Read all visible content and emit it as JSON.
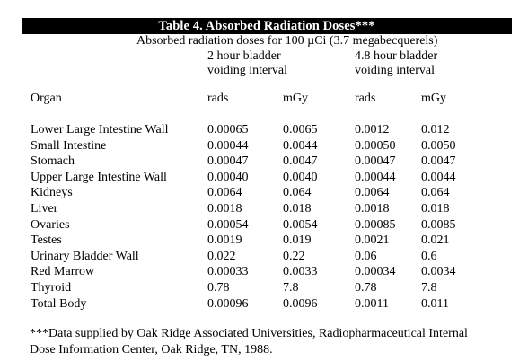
{
  "title": "Table 4. Absorbed Radiation Doses***",
  "subtitle": "Absorbed radiation doses for 100 µCi (3.7 megabecquerels)",
  "groups": [
    {
      "line1": "2 hour bladder",
      "line2": "voiding interval"
    },
    {
      "line1": "4.8 hour bladder",
      "line2": "voiding interval"
    }
  ],
  "columns": {
    "organ": "Organ",
    "rads1": "rads",
    "mgy1": "mGy",
    "rads2": "rads",
    "mgy2": "mGy"
  },
  "rows": [
    {
      "organ": "Lower Large Intestine Wall",
      "rads1": "0.00065",
      "mgy1": "0.0065",
      "rads2": "0.0012",
      "mgy2": "0.012"
    },
    {
      "organ": "Small Intestine",
      "rads1": "0.00044",
      "mgy1": "0.0044",
      "rads2": "0.00050",
      "mgy2": "0.0050"
    },
    {
      "organ": "Stomach",
      "rads1": "0.00047",
      "mgy1": "0.0047",
      "rads2": "0.00047",
      "mgy2": "0.0047"
    },
    {
      "organ": "Upper Large Intestine Wall",
      "rads1": "0.00040",
      "mgy1": "0.0040",
      "rads2": "0.00044",
      "mgy2": "0.0044"
    },
    {
      "organ": "Kidneys",
      "rads1": "0.0064",
      "mgy1": "0.064",
      "rads2": "0.0064",
      "mgy2": "0.064"
    },
    {
      "organ": "Liver",
      "rads1": "0.0018",
      "mgy1": "0.018",
      "rads2": "0.0018",
      "mgy2": "0.018"
    },
    {
      "organ": "Ovaries",
      "rads1": "0.00054",
      "mgy1": "0.0054",
      "rads2": "0.00085",
      "mgy2": "0.0085"
    },
    {
      "organ": "Testes",
      "rads1": "0.0019",
      "mgy1": "0.019",
      "rads2": "0.0021",
      "mgy2": "0.021"
    },
    {
      "organ": "Urinary Bladder Wall",
      "rads1": "0.022",
      "mgy1": "0.22",
      "rads2": "0.06",
      "mgy2": "0.6"
    },
    {
      "organ": "Red Marrow",
      "rads1": "0.00033",
      "mgy1": "0.0033",
      "rads2": "0.00034",
      "mgy2": "0.0034"
    },
    {
      "organ": "Thyroid",
      "rads1": "0.78",
      "mgy1": "7.8",
      "rads2": "0.78",
      "mgy2": "7.8"
    },
    {
      "organ": "Total Body",
      "rads1": "0.00096",
      "mgy1": "0.0096",
      "rads2": "0.0011",
      "mgy2": "0.011"
    }
  ],
  "footnote": {
    "line1": "***Data supplied by Oak Ridge Associated Universities, Radiopharmaceutical Internal",
    "line2": "Dose Information Center, Oak Ridge, TN, 1988."
  },
  "colors": {
    "title_bar_bg": "#000000",
    "title_text": "#ffffff",
    "body_text": "#000000",
    "background": "#ffffff"
  }
}
